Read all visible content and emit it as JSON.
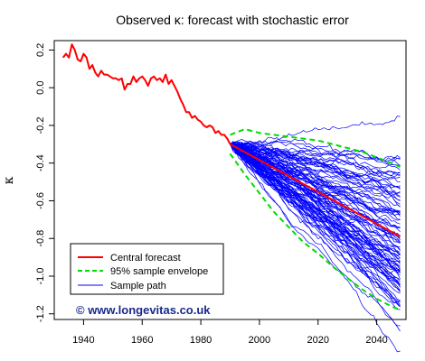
{
  "chart_data": {
    "type": "line",
    "title": "Observed κ: forecast with stochastic error",
    "xlabel": "",
    "ylabel": "κ",
    "xlim": [
      1930,
      2050
    ],
    "ylim": [
      -1.23,
      0.25
    ],
    "x_ticks": [
      1940,
      1960,
      1980,
      2000,
      2020,
      2040
    ],
    "x_tick_labels": [
      "1940",
      "1960",
      "1980",
      "2000",
      "2020",
      "2040"
    ],
    "y_ticks": [
      0.2,
      0.0,
      -0.2,
      -0.4,
      -0.6,
      -0.8,
      -1.0,
      -1.2
    ],
    "y_tick_labels": [
      "0.2",
      "0.0",
      "-0.2",
      "-0.4",
      "-0.6",
      "-0.8",
      "-1.0",
      "-1.2"
    ],
    "grid": false,
    "legend_position": "bottom-left",
    "series": [
      {
        "name": "Observed",
        "color": "#ff0000",
        "x": [
          1933,
          1934,
          1935,
          1936,
          1937,
          1938,
          1939,
          1940,
          1941,
          1942,
          1943,
          1944,
          1945,
          1946,
          1947,
          1948,
          1949,
          1950,
          1951,
          1952,
          1953,
          1954,
          1955,
          1956,
          1957,
          1958,
          1959,
          1960,
          1961,
          1962,
          1963,
          1964,
          1965,
          1966,
          1967,
          1968,
          1969,
          1970,
          1971,
          1972,
          1973,
          1974,
          1975,
          1976,
          1977,
          1978,
          1979,
          1980,
          1981,
          1982,
          1983,
          1984,
          1985,
          1986,
          1987,
          1988,
          1989,
          1990
        ],
        "values": [
          0.16,
          0.18,
          0.16,
          0.23,
          0.2,
          0.15,
          0.14,
          0.18,
          0.16,
          0.1,
          0.12,
          0.08,
          0.06,
          0.09,
          0.07,
          0.07,
          0.06,
          0.05,
          0.05,
          0.04,
          0.05,
          -0.01,
          0.02,
          0.02,
          0.06,
          0.03,
          0.05,
          0.06,
          0.04,
          0.01,
          0.05,
          0.06,
          0.04,
          0.05,
          0.03,
          0.07,
          0.02,
          0.04,
          0.01,
          -0.02,
          -0.06,
          -0.09,
          -0.13,
          -0.13,
          -0.16,
          -0.15,
          -0.17,
          -0.18,
          -0.2,
          -0.21,
          -0.2,
          -0.21,
          -0.24,
          -0.23,
          -0.25,
          -0.25,
          -0.27,
          -0.3
        ]
      },
      {
        "name": "Central forecast",
        "color": "#ff0000",
        "x": [
          1990,
          2048
        ],
        "values": [
          -0.3,
          -0.79
        ]
      },
      {
        "name": "95% sample envelope",
        "color": "#00dd00",
        "upper": {
          "x": [
            1990,
            1995,
            2000,
            2005,
            2010,
            2015,
            2020,
            2025,
            2030,
            2035,
            2040,
            2045,
            2048
          ],
          "values": [
            -0.25,
            -0.22,
            -0.24,
            -0.25,
            -0.26,
            -0.27,
            -0.28,
            -0.3,
            -0.32,
            -0.34,
            -0.37,
            -0.4,
            -0.42
          ]
        },
        "lower": {
          "x": [
            1990,
            1995,
            2000,
            2005,
            2010,
            2015,
            2020,
            2025,
            2030,
            2035,
            2040,
            2045,
            2048
          ],
          "values": [
            -0.35,
            -0.46,
            -0.56,
            -0.66,
            -0.74,
            -0.82,
            -0.88,
            -0.95,
            -1.01,
            -1.07,
            -1.12,
            -1.16,
            -1.18
          ]
        }
      },
      {
        "name": "Sample path",
        "color": "#0000ff",
        "x_start": 1990,
        "x_end": 2048,
        "value_start": -0.3,
        "drift_per_year": -0.0085,
        "path_count": 100
      }
    ]
  },
  "legend": [
    {
      "label": "Central forecast",
      "color": "#ff0000",
      "style": "solid"
    },
    {
      "label": "95% sample envelope",
      "color": "#00dd00",
      "style": "dashed"
    },
    {
      "label": "Sample path",
      "color": "#0000ff",
      "style": "thin"
    }
  ],
  "watermark": "© www.longevitas.co.uk"
}
